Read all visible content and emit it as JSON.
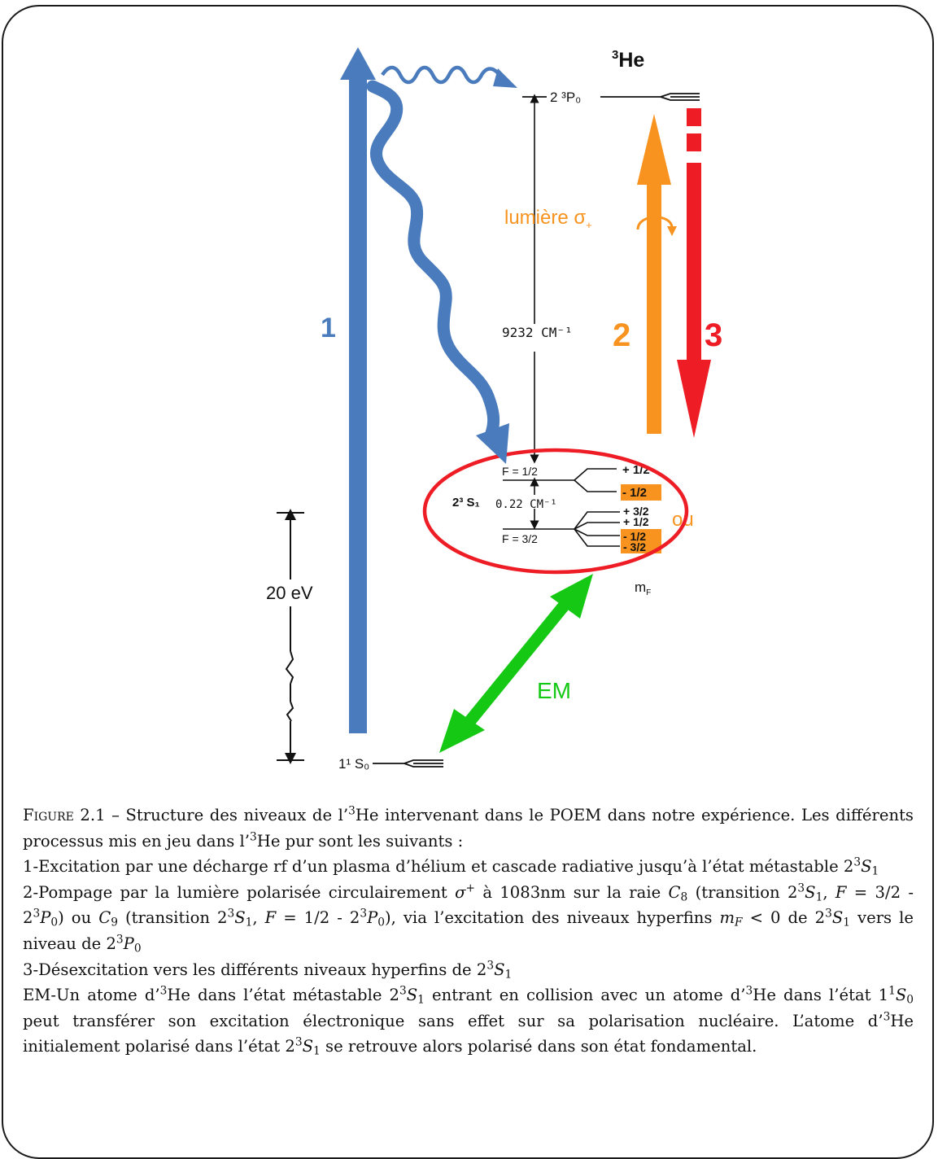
{
  "diagram": {
    "isotope": {
      "sup": "3",
      "base": "He"
    },
    "ground_level": "1¹ S₀",
    "excited_level": "2 ³P₀",
    "metastable_level": "2³ S₁",
    "gap_excited": "9232 CM⁻¹",
    "gap_hyperfine": "0.22 CM⁻¹",
    "energy_scale": "20 eV",
    "f_half": "F = 1/2",
    "f_three_halves": "F = 3/2",
    "mf_label": "m",
    "mf_sub": "F",
    "sublevels_half": [
      "+ 1/2",
      "- 1/2"
    ],
    "sublevels_three_halves": [
      "+ 3/2",
      "+ 1/2",
      "- 1/2",
      "- 3/2"
    ],
    "ou_label": "ou",
    "light_label": "lumière σ",
    "light_sub": "+",
    "process_labels": {
      "p1": "1",
      "p2": "2",
      "p3": "3",
      "em": "EM"
    },
    "colors": {
      "blue": "#4a7cbd",
      "orange": "#f7931e",
      "red": "#ee1c24",
      "green": "#14c814",
      "highlight": "#f7931e"
    }
  },
  "caption": {
    "figure_label": "Figure 2.1",
    "dash": " – ",
    "intro_1": "Structure des niveaux de l’",
    "intro_2": "He intervenant dans le POEM dans notre expérience. Les différents processus mis en jeu dans l’",
    "intro_3": "He pur sont les suivants :",
    "item1_text": "1-Excitation par une décharge rf d’un plasma d’hélium et cascade radiative jusqu’à l’état métastable 2",
    "item2_a": "2-Pompage par la lumière polarisée circulairement ",
    "item2_b": " à 1083nm sur la raie ",
    "item2_c": " (transition 2",
    "item2_d": ", ",
    "item2_e": " = 3/2 - 2",
    "item2_f": ") ou ",
    "item2_g": " (transition 2",
    "item2_h": ", ",
    "item2_i": " = 1/2 - 2",
    "item2_j": "), via l’excitation des niveaux hyperfins ",
    "item2_k": " < 0 de 2",
    "item2_l": " vers le niveau de 2",
    "item3_text": "3-Désexcitation vers les différents niveaux hyperfins de 2",
    "em_a": "EM-Un atome d’",
    "em_b": "He dans l’état métastable 2",
    "em_c": " entrant en collision avec un atome d’",
    "em_d": "He dans l’état 1",
    "em_e": " peut transférer son excitation électronique sans effet sur sa polarisation nucléaire. L’atome d’",
    "em_f": "He initialement polarisé dans l’état 2",
    "em_g": " se retrouve alors polarisé dans son état fondamental.",
    "sup3": "3",
    "sup1": "1",
    "sup_plus": "+",
    "S": "S",
    "P": "P",
    "F": "F",
    "m": "m",
    "C": "C",
    "sigma": "σ",
    "sub1": "1",
    "sub0": "0",
    "sub8": "8",
    "sub9": "9",
    "subF": "F"
  }
}
